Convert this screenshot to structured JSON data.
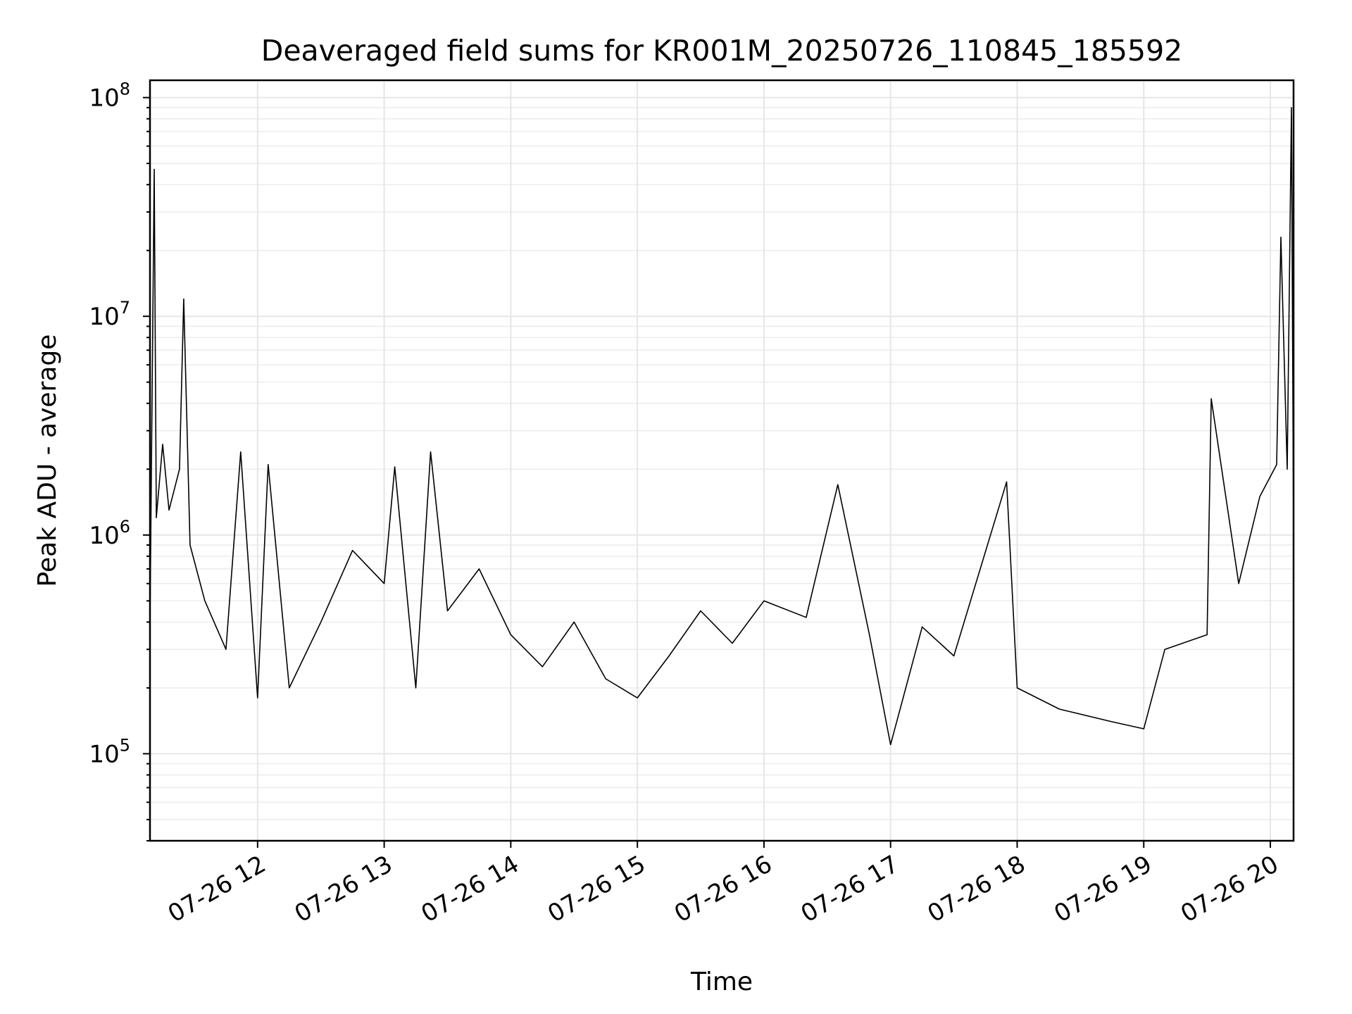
{
  "chart_data": {
    "type": "line",
    "title": "Deaveraged field sums for KR001M_20250726_110845_185592",
    "xlabel": "Time",
    "ylabel": "Peak ADU - average",
    "yscale": "log",
    "ylim": [
      40000,
      120000000
    ],
    "xlim": [
      "2025-07-26 11:09",
      "2025-07-26 20:11"
    ],
    "grid": true,
    "legend": "none",
    "line_color": "#000000",
    "x_ticks": [
      "07-26 12",
      "07-26 13",
      "07-26 14",
      "07-26 15",
      "07-26 16",
      "07-26 17",
      "07-26 18",
      "07-26 19",
      "07-26 20"
    ],
    "y_ticks": [
      {
        "base": "10",
        "exp": "5"
      },
      {
        "base": "10",
        "exp": "6"
      },
      {
        "base": "10",
        "exp": "7"
      },
      {
        "base": "10",
        "exp": "8"
      }
    ],
    "series": [
      {
        "points": [
          [
            "2025-07-26 11:09",
            400000
          ],
          [
            "2025-07-26 11:11",
            47000000
          ],
          [
            "2025-07-26 11:12",
            1200000
          ],
          [
            "2025-07-26 11:15",
            2600000
          ],
          [
            "2025-07-26 11:18",
            1300000
          ],
          [
            "2025-07-26 11:23",
            2000000
          ],
          [
            "2025-07-26 11:25",
            12000000
          ],
          [
            "2025-07-26 11:28",
            900000
          ],
          [
            "2025-07-26 11:35",
            500000
          ],
          [
            "2025-07-26 11:45",
            300000
          ],
          [
            "2025-07-26 11:52",
            2400000
          ],
          [
            "2025-07-26 12:00",
            180000
          ],
          [
            "2025-07-26 12:05",
            2100000
          ],
          [
            "2025-07-26 12:15",
            200000
          ],
          [
            "2025-07-26 12:30",
            400000
          ],
          [
            "2025-07-26 12:45",
            850000
          ],
          [
            "2025-07-26 13:00",
            600000
          ],
          [
            "2025-07-26 13:05",
            2050000
          ],
          [
            "2025-07-26 13:15",
            200000
          ],
          [
            "2025-07-26 13:22",
            2400000
          ],
          [
            "2025-07-26 13:30",
            450000
          ],
          [
            "2025-07-26 13:45",
            700000
          ],
          [
            "2025-07-26 14:00",
            350000
          ],
          [
            "2025-07-26 14:15",
            250000
          ],
          [
            "2025-07-26 14:30",
            400000
          ],
          [
            "2025-07-26 14:45",
            220000
          ],
          [
            "2025-07-26 15:00",
            180000
          ],
          [
            "2025-07-26 15:15",
            280000
          ],
          [
            "2025-07-26 15:30",
            450000
          ],
          [
            "2025-07-26 15:45",
            320000
          ],
          [
            "2025-07-26 16:00",
            500000
          ],
          [
            "2025-07-26 16:20",
            420000
          ],
          [
            "2025-07-26 16:35",
            1700000
          ],
          [
            "2025-07-26 16:50",
            350000
          ],
          [
            "2025-07-26 17:00",
            110000
          ],
          [
            "2025-07-26 17:15",
            380000
          ],
          [
            "2025-07-26 17:30",
            280000
          ],
          [
            "2025-07-26 17:55",
            1750000
          ],
          [
            "2025-07-26 18:00",
            200000
          ],
          [
            "2025-07-26 18:20",
            160000
          ],
          [
            "2025-07-26 18:45",
            140000
          ],
          [
            "2025-07-26 19:00",
            130000
          ],
          [
            "2025-07-26 19:10",
            300000
          ],
          [
            "2025-07-26 19:30",
            350000
          ],
          [
            "2025-07-26 19:32",
            4200000
          ],
          [
            "2025-07-26 19:45",
            600000
          ],
          [
            "2025-07-26 19:55",
            1500000
          ],
          [
            "2025-07-26 20:03",
            2100000
          ],
          [
            "2025-07-26 20:05",
            23000000
          ],
          [
            "2025-07-26 20:08",
            2000000
          ],
          [
            "2025-07-26 20:10",
            90000000
          ],
          [
            "2025-07-26 20:11",
            1000000
          ]
        ]
      }
    ]
  }
}
